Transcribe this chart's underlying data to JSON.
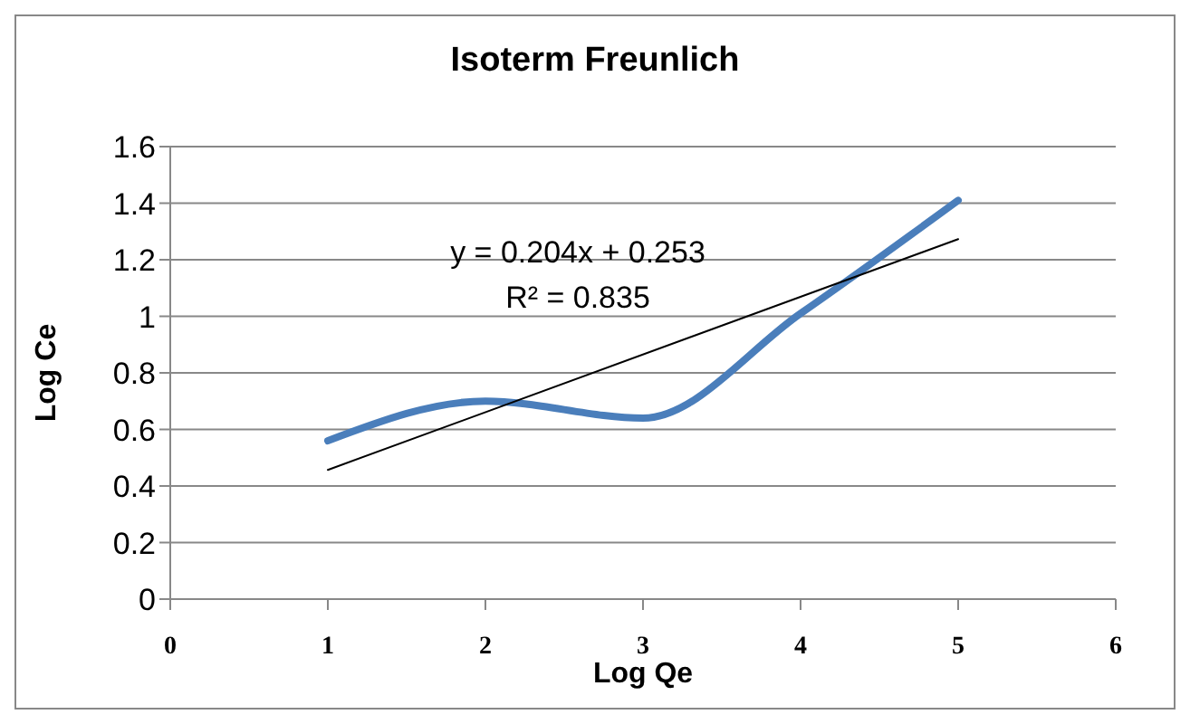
{
  "chart_data": {
    "type": "line",
    "title": "Isoterm Freunlich",
    "xlabel": "Log Qe",
    "ylabel": "Log Ce",
    "xlim": [
      0,
      6
    ],
    "xticks": [
      0,
      1,
      2,
      3,
      4,
      5,
      6
    ],
    "ylim": [
      0,
      1.6
    ],
    "yticks": [
      0,
      0.2,
      0.4,
      0.6,
      0.8,
      1,
      1.2,
      1.4,
      1.6
    ],
    "grid": "y",
    "marker": "none",
    "series": [
      {
        "type": "line",
        "color": "#4a7ebb",
        "x": [
          1,
          2,
          3,
          4,
          5
        ],
        "values": [
          0.56,
          0.7,
          0.64,
          1.01,
          1.41
        ]
      },
      {
        "type": "line",
        "color": "#000000",
        "x": [
          1,
          5
        ],
        "values": [
          0.457,
          1.273
        ]
      }
    ],
    "annotations": [
      "y = 0.204x + 0.253",
      "R² = 0.835"
    ]
  }
}
